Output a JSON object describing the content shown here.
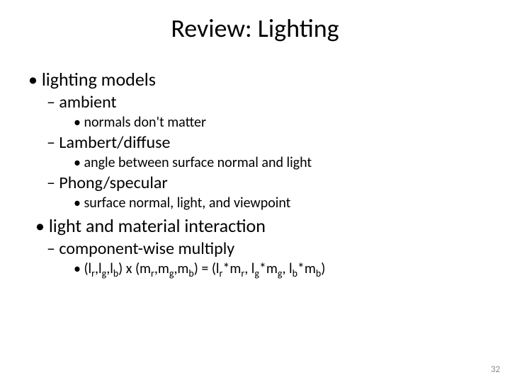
{
  "title": "Review: Lighting",
  "page_number": "32",
  "colors": {
    "background": "#ffffff",
    "text": "#000000",
    "pagenum": "#8b8b8b"
  },
  "typography": {
    "font_family": "Calibri",
    "title_fontsize": 36,
    "lvl1_fontsize": 26,
    "lvl2_fontsize": 24,
    "lvl3_fontsize": 20,
    "pagenum_fontsize": 13
  },
  "content": {
    "b1": "lighting models",
    "b1_1": "ambient",
    "b1_1_1": "normals don't matter",
    "b1_2": "Lambert/diffuse",
    "b1_2_1": "angle between surface normal and light",
    "b1_3": "Phong/specular",
    "b1_3_1": "surface normal, light, and viewpoint",
    "b2": "light and material interaction",
    "b2_1": "component-wise multiply",
    "b2_1_1_html": "(l<sub>r</sub>,l<sub>g</sub>,l<sub>b</sub>) x (m<sub>r</sub>,m<sub>g</sub>,m<sub>b</sub>) = (l<sub>r</sub>*m<sub>r</sub>, l<sub>g</sub>*m<sub>g</sub>, l<sub>b</sub>*m<sub>b</sub>)"
  }
}
